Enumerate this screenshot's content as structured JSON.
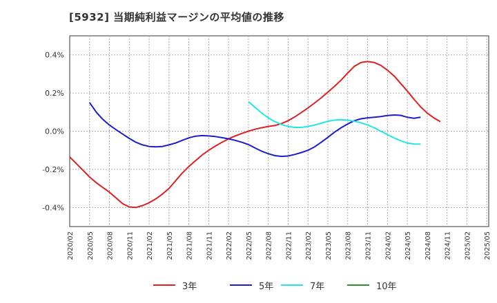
{
  "title": "[5932]  当期純利益マージンの平均値の推移",
  "chart_data": {
    "type": "line",
    "x_ticks": [
      "2020/02",
      "2020/05",
      "2020/08",
      "2020/11",
      "2021/02",
      "2021/05",
      "2021/08",
      "2021/11",
      "2022/02",
      "2022/05",
      "2022/08",
      "2022/11",
      "2023/02",
      "2023/05",
      "2023/08",
      "2023/11",
      "2024/02",
      "2024/05",
      "2024/08",
      "2024/11",
      "2025/02",
      "2025/05"
    ],
    "y_ticks": [
      "0.4%",
      "0.2%",
      "0.0%",
      "-0.2%",
      "-0.4%"
    ],
    "y_tick_values": [
      0.4,
      0.2,
      0.0,
      -0.2,
      -0.4
    ],
    "ylim": [
      -0.5,
      0.5
    ],
    "grid": true,
    "legend_position": "bottom",
    "series": [
      {
        "name": "3年",
        "color": "#dd1f1f",
        "start": "2020/02",
        "values": [
          -0.135,
          -0.17,
          -0.205,
          -0.24,
          -0.27,
          -0.295,
          -0.32,
          -0.35,
          -0.38,
          -0.397,
          -0.4,
          -0.39,
          -0.375,
          -0.355,
          -0.33,
          -0.3,
          -0.26,
          -0.22,
          -0.185,
          -0.155,
          -0.125,
          -0.1,
          -0.078,
          -0.058,
          -0.04,
          -0.025,
          -0.012,
          0.0,
          0.01,
          0.018,
          0.025,
          0.03,
          0.04,
          0.055,
          0.075,
          0.098,
          0.122,
          0.148,
          0.175,
          0.205,
          0.235,
          0.268,
          0.305,
          0.34,
          0.36,
          0.365,
          0.36,
          0.345,
          0.32,
          0.29,
          0.25,
          0.21,
          0.168,
          0.128,
          0.095,
          0.07,
          0.05
        ]
      },
      {
        "name": "5年",
        "color": "#1c1ccc",
        "start": "2020/05",
        "values": [
          0.15,
          0.1,
          0.062,
          0.032,
          0.008,
          -0.015,
          -0.038,
          -0.058,
          -0.072,
          -0.08,
          -0.082,
          -0.08,
          -0.072,
          -0.062,
          -0.048,
          -0.035,
          -0.026,
          -0.023,
          -0.025,
          -0.028,
          -0.034,
          -0.04,
          -0.048,
          -0.058,
          -0.07,
          -0.088,
          -0.105,
          -0.118,
          -0.128,
          -0.132,
          -0.13,
          -0.122,
          -0.112,
          -0.1,
          -0.082,
          -0.058,
          -0.032,
          -0.005,
          0.018,
          0.038,
          0.055,
          0.065,
          0.07,
          0.073,
          0.077,
          0.082,
          0.085,
          0.083,
          0.073,
          0.068,
          0.073
        ]
      },
      {
        "name": "7年",
        "color": "#22e6e6",
        "start": "2022/05",
        "values": [
          0.155,
          0.125,
          0.095,
          0.07,
          0.05,
          0.035,
          0.025,
          0.02,
          0.02,
          0.025,
          0.032,
          0.042,
          0.052,
          0.058,
          0.06,
          0.058,
          0.052,
          0.044,
          0.033,
          0.018,
          0.0,
          -0.018,
          -0.035,
          -0.05,
          -0.062,
          -0.067,
          -0.068
        ]
      },
      {
        "name": "10年",
        "color": "#2e8b2e",
        "start": "2020/02",
        "values": []
      }
    ]
  }
}
